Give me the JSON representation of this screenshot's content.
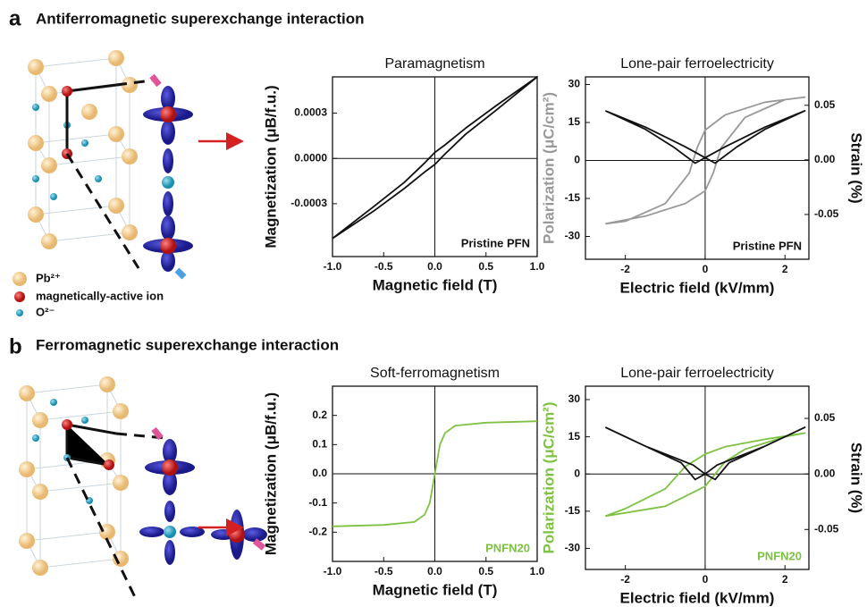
{
  "panels": [
    {
      "label": "a",
      "title": "Antiferromagnetic superexchange interaction"
    },
    {
      "label": "b",
      "title": "Ferromagnetic superexchange interaction"
    }
  ],
  "legend": [
    "Pb²⁺",
    "magnetically-active ion",
    "O²⁻"
  ],
  "chart_data": [
    {
      "type": "line",
      "title": "Paramagnetism",
      "x_label": "Magnetic field (T)",
      "y_label": "Magnetization (μB/f.u.)",
      "annotation": "Pristine PFN",
      "annotation_color": "#111",
      "xlim": [
        -1,
        1
      ],
      "ylim": [
        -0.00065,
        0.00054
      ],
      "xticks": [
        {
          "value": -1,
          "label": "-1.0"
        },
        {
          "value": -0.5,
          "label": "-0.5"
        },
        {
          "value": 0,
          "label": "0.0"
        },
        {
          "value": 0.5,
          "label": "0.5"
        },
        {
          "value": 1,
          "label": "1.0"
        }
      ],
      "yticks": [
        -0.0003,
        {
          "value": 0,
          "label": "0.0000"
        },
        0.0003
      ],
      "series": [
        {
          "color": "#111",
          "x": [
            -1,
            -0.6,
            -0.3,
            -0.1,
            0,
            0.1,
            0.3,
            0.6,
            1,
            0.6,
            0.3,
            0.1,
            0,
            -0.1,
            -0.3,
            -0.6,
            -1
          ],
          "values": [
            -0.00053,
            -0.00035,
            -0.0002,
            -9e-05,
            -4e-05,
            3e-05,
            0.00016,
            0.00032,
            0.00054,
            0.00035,
            0.0002,
            9e-05,
            4e-05,
            -3e-05,
            -0.00016,
            -0.00032,
            -0.00053
          ]
        }
      ]
    },
    {
      "type": "line",
      "title": "Lone-pair ferroelectricity",
      "x_label": "Electric field (kV/mm)",
      "y_label": "Polarization (μC/cm²)",
      "y2_label": "Strain (%)",
      "annotation": "Pristine PFN",
      "annotation_color": "#111",
      "xlim": [
        -3,
        2.6
      ],
      "ylim": [
        -39,
        33
      ],
      "y2lim": [
        -0.091,
        0.076
      ],
      "xticks": [
        -2,
        0,
        2
      ],
      "yticks": [
        -30,
        -15,
        0,
        15,
        30
      ],
      "y2ticks": [
        -0.05,
        {
          "value": 0,
          "label": "0.00"
        },
        0.05
      ],
      "series": [
        {
          "color": "#999",
          "x": [
            -2.5,
            -1.5,
            -0.5,
            0,
            0.2,
            0.4,
            1,
            2,
            2.5,
            1.5,
            0.5,
            0,
            -0.2,
            -0.4,
            -1,
            -2,
            -2.5
          ],
          "values": [
            -25,
            -22,
            -17,
            -12,
            -5,
            5,
            17,
            24,
            25,
            23,
            18,
            12,
            5,
            -5,
            -17,
            -24,
            -25
          ]
        },
        {
          "color": "#111",
          "axis": "y2",
          "x": [
            -2.5,
            -1.5,
            -0.8,
            -0.25,
            0,
            0.5,
            1.5,
            2.5,
            1.5,
            0.8,
            0.25,
            0,
            -0.5,
            -1.5,
            -2.5
          ],
          "values": [
            0.045,
            0.028,
            0.012,
            -0.003,
            0.002,
            0.012,
            0.03,
            0.045,
            0.028,
            0.012,
            -0.003,
            0.002,
            0.012,
            0.03,
            0.045
          ]
        }
      ]
    },
    {
      "type": "line",
      "title": "Soft-ferromagnetism",
      "x_label": "Magnetic field (T)",
      "y_label": "Magnetization (μB/f.u.)",
      "annotation": "PNFN20",
      "annotation_color": "#7dc242",
      "xlim": [
        -1,
        1
      ],
      "ylim": [
        -0.3,
        0.3
      ],
      "xticks": [
        {
          "value": -1,
          "label": "-1.0"
        },
        {
          "value": -0.5,
          "label": "-0.5"
        },
        {
          "value": 0,
          "label": "0.0"
        },
        {
          "value": 0.5,
          "label": "0.5"
        },
        {
          "value": 1,
          "label": "1.0"
        }
      ],
      "yticks": [
        -0.2,
        -0.1,
        {
          "value": 0,
          "label": "0.0"
        },
        0.1,
        0.2
      ],
      "series": [
        {
          "color": "#7dc242",
          "x": [
            -1,
            -0.5,
            -0.2,
            -0.1,
            -0.05,
            0,
            0.05,
            0.1,
            0.2,
            0.5,
            1
          ],
          "values": [
            -0.18,
            -0.175,
            -0.165,
            -0.14,
            -0.1,
            0,
            0.1,
            0.14,
            0.165,
            0.175,
            0.18
          ]
        }
      ]
    },
    {
      "type": "line",
      "title": "Lone-pair ferroelectricity",
      "x_label": "Electric field (kV/mm)",
      "y_label": "Polarization (μC/cm²)",
      "y2_label": "Strain (%)",
      "annotation": "PNFN20",
      "annotation_color": "#7dc242",
      "xlim": [
        -3,
        2.6
      ],
      "ylim": [
        -38.5,
        35.4
      ],
      "y2lim": [
        -0.086,
        0.079
      ],
      "xticks": [
        -2,
        0,
        2
      ],
      "yticks": [
        -30,
        -15,
        0,
        15,
        30
      ],
      "y2ticks": [
        -0.05,
        {
          "value": 0,
          "label": "0.00"
        },
        0.05
      ],
      "series": [
        {
          "color": "#7dc242",
          "x": [
            -2.5,
            -1,
            0,
            0.5,
            1,
            2,
            2.5,
            1.5,
            0.5,
            0,
            -0.5,
            -1,
            -2,
            -2.5
          ],
          "values": [
            -17,
            -13,
            -5,
            5,
            10,
            15,
            16.5,
            14,
            11,
            8,
            3,
            -6,
            -14,
            -17
          ]
        },
        {
          "color": "#111",
          "axis": "y2",
          "x": [
            -2.5,
            -1.5,
            -0.6,
            -0.25,
            0,
            0.3,
            1.5,
            2.5,
            1.5,
            0.6,
            0.25,
            0,
            -0.3,
            -1.5,
            -2.5
          ],
          "values": [
            0.042,
            0.025,
            0.01,
            -0.005,
            0,
            0.008,
            0.025,
            0.042,
            0.025,
            0.01,
            -0.005,
            0,
            0.008,
            0.025,
            0.042
          ]
        }
      ]
    }
  ]
}
